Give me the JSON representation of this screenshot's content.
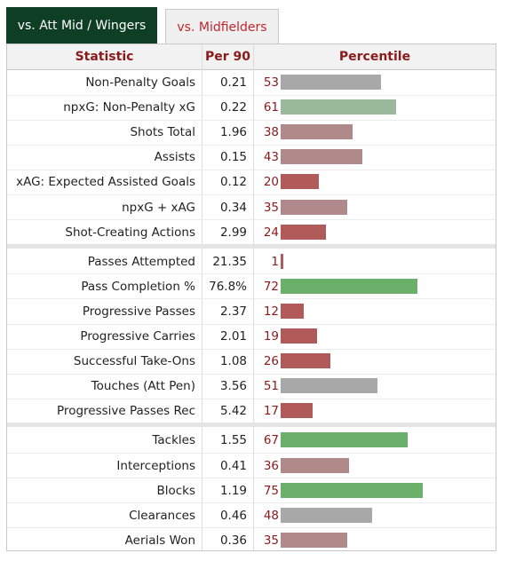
{
  "tabs": [
    {
      "label": "vs. Att Mid / Wingers",
      "active": true
    },
    {
      "label": "vs. Midfielders",
      "active": false
    }
  ],
  "header": {
    "statistic": "Statistic",
    "per90": "Per 90",
    "percentile": "Percentile"
  },
  "colors": {
    "bar_high": "#6aaf6a",
    "bar_mid_high": "#9ab89a",
    "bar_mid": "#a8a8a8",
    "bar_mid_low": "#b08a8a",
    "bar_low": "#b05a5a",
    "accent": "#8b1a1a",
    "tab_active_bg": "#0e3e24"
  },
  "groups": [
    [
      {
        "label": "Non-Penalty Goals",
        "per90": "0.21",
        "percentile": 53
      },
      {
        "label": "npxG: Non-Penalty xG",
        "per90": "0.22",
        "percentile": 61
      },
      {
        "label": "Shots Total",
        "per90": "1.96",
        "percentile": 38
      },
      {
        "label": "Assists",
        "per90": "0.15",
        "percentile": 43
      },
      {
        "label": "xAG: Expected Assisted Goals",
        "per90": "0.12",
        "percentile": 20
      },
      {
        "label": "npxG + xAG",
        "per90": "0.34",
        "percentile": 35
      },
      {
        "label": "Shot-Creating Actions",
        "per90": "2.99",
        "percentile": 24
      }
    ],
    [
      {
        "label": "Passes Attempted",
        "per90": "21.35",
        "percentile": 1
      },
      {
        "label": "Pass Completion %",
        "per90": "76.8%",
        "percentile": 72
      },
      {
        "label": "Progressive Passes",
        "per90": "2.37",
        "percentile": 12
      },
      {
        "label": "Progressive Carries",
        "per90": "2.01",
        "percentile": 19
      },
      {
        "label": "Successful Take-Ons",
        "per90": "1.08",
        "percentile": 26
      },
      {
        "label": "Touches (Att Pen)",
        "per90": "3.56",
        "percentile": 51
      },
      {
        "label": "Progressive Passes Rec",
        "per90": "5.42",
        "percentile": 17
      }
    ],
    [
      {
        "label": "Tackles",
        "per90": "1.55",
        "percentile": 67
      },
      {
        "label": "Interceptions",
        "per90": "0.41",
        "percentile": 36
      },
      {
        "label": "Blocks",
        "per90": "1.19",
        "percentile": 75
      },
      {
        "label": "Clearances",
        "per90": "0.46",
        "percentile": 48
      },
      {
        "label": "Aerials Won",
        "per90": "0.36",
        "percentile": 35
      }
    ]
  ]
}
